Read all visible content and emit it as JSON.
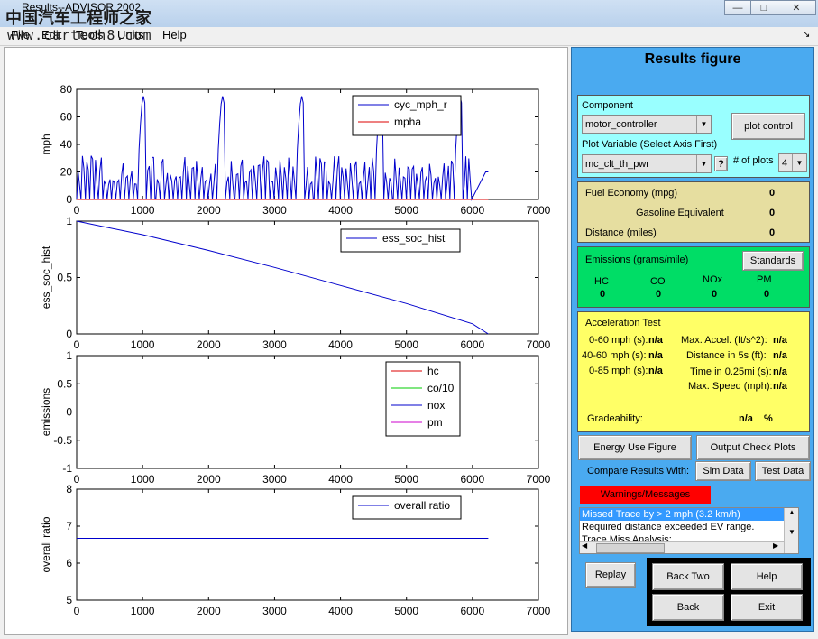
{
  "window": {
    "title": "Results--ADVISOR 2002",
    "watermark": "中国汽车工程师之家",
    "watermark_url": "www.cartech8.com",
    "minimize": "—",
    "maximize": "□",
    "close": "✕"
  },
  "menubar": {
    "items": [
      "File",
      "Edit",
      "Tools",
      "Units",
      "Help"
    ]
  },
  "plots": [
    {
      "ylabel": "mph",
      "yticks": [
        "80",
        "60",
        "40",
        "20",
        "0"
      ],
      "xticks": [
        "0",
        "1000",
        "2000",
        "3000",
        "4000",
        "5000",
        "6000",
        "7000"
      ],
      "legend": [
        {
          "name": "cyc_mph_r",
          "color": "#0000cc"
        },
        {
          "name": "mpha",
          "color": "#dd0000"
        }
      ]
    },
    {
      "ylabel": "ess_soc_hist",
      "yticks": [
        "1",
        "0.5",
        "0"
      ],
      "xticks": [
        "0",
        "1000",
        "2000",
        "3000",
        "4000",
        "5000",
        "6000",
        "7000"
      ],
      "legend": [
        {
          "name": "ess_soc_hist",
          "color": "#0000cc"
        }
      ]
    },
    {
      "ylabel": "emissions",
      "yticks": [
        "1",
        "0.5",
        "0",
        "-0.5",
        "-1"
      ],
      "xticks": [
        "0",
        "1000",
        "2000",
        "3000",
        "4000",
        "5000",
        "6000",
        "7000"
      ],
      "legend": [
        {
          "name": "hc",
          "color": "#dd0000"
        },
        {
          "name": "co/10",
          "color": "#00cc00"
        },
        {
          "name": "nox",
          "color": "#0000cc"
        },
        {
          "name": "pm",
          "color": "#cc00cc"
        }
      ]
    },
    {
      "ylabel": "overall ratio",
      "yticks": [
        "8",
        "7",
        "6",
        "5"
      ],
      "xticks": [
        "0",
        "1000",
        "2000",
        "3000",
        "4000",
        "5000",
        "6000",
        "7000"
      ],
      "legend": [
        {
          "name": "overall ratio",
          "color": "#0000cc"
        }
      ]
    }
  ],
  "chart_data": [
    {
      "type": "line",
      "ylabel": "mph",
      "xlim": [
        0,
        7000
      ],
      "ylim": [
        0,
        80
      ],
      "series": [
        {
          "name": "cyc_mph_r",
          "description": "repeating drive cycle, 5 cycles of ~1200 s, peaks ~75 mph",
          "x": [
            0,
            1200,
            2400,
            3600,
            4800,
            6240
          ],
          "peaks": [
            75,
            75,
            75,
            75,
            75
          ]
        },
        {
          "name": "mpha",
          "x": [
            0,
            6240
          ],
          "y": [
            0,
            0
          ]
        }
      ]
    },
    {
      "type": "line",
      "ylabel": "ess_soc_hist",
      "xlim": [
        0,
        7000
      ],
      "ylim": [
        0,
        1
      ],
      "series": [
        {
          "name": "ess_soc_hist",
          "x": [
            0,
            1000,
            2000,
            3000,
            4000,
            5000,
            6000,
            6240
          ],
          "y": [
            1.0,
            0.88,
            0.74,
            0.59,
            0.43,
            0.27,
            0.09,
            0.0
          ]
        }
      ]
    },
    {
      "type": "line",
      "ylabel": "emissions",
      "xlim": [
        0,
        7000
      ],
      "ylim": [
        -1,
        1
      ],
      "series": [
        {
          "name": "hc",
          "x": [
            0,
            6240
          ],
          "y": [
            0,
            0
          ]
        },
        {
          "name": "co/10",
          "x": [
            0,
            6240
          ],
          "y": [
            0,
            0
          ]
        },
        {
          "name": "nox",
          "x": [
            0,
            6240
          ],
          "y": [
            0,
            0
          ]
        },
        {
          "name": "pm",
          "x": [
            0,
            6240
          ],
          "y": [
            0,
            0
          ]
        }
      ]
    },
    {
      "type": "line",
      "ylabel": "overall ratio",
      "xlim": [
        0,
        7000
      ],
      "ylim": [
        5,
        8
      ],
      "series": [
        {
          "name": "overall ratio",
          "x": [
            0,
            6240
          ],
          "y": [
            6.67,
            6.67
          ]
        }
      ]
    }
  ],
  "panel": {
    "title": "Results figure",
    "component_label": "Component",
    "component_value": "motor_controller",
    "plot_control": "plot control",
    "plot_variable_label": "Plot Variable (Select Axis First)",
    "plot_variable_value": "mc_clt_th_pwr",
    "help_q": "?",
    "num_plots_label": "# of plots",
    "num_plots_value": "4",
    "fuel": {
      "fe_label": "Fuel Economy (mpg)",
      "fe_value": "0",
      "ge_label": "Gasoline Equivalent",
      "ge_value": "0",
      "dist_label": "Distance (miles)",
      "dist_value": "0"
    },
    "emissions": {
      "label": "Emissions (grams/mile)",
      "standards": "Standards",
      "cols": [
        {
          "name": "HC",
          "value": "0"
        },
        {
          "name": "CO",
          "value": "0"
        },
        {
          "name": "NOx",
          "value": "0"
        },
        {
          "name": "PM",
          "value": "0"
        }
      ]
    },
    "accel": {
      "title": "Acceleration Test",
      "r060": "0-60 mph (s):",
      "r060v": "n/a",
      "r4060": "40-60 mph (s):",
      "r4060v": "n/a",
      "r085": "0-85 mph (s):",
      "r085v": "n/a",
      "maxacc": "Max. Accel. (ft/s^2):",
      "maxaccv": "n/a",
      "d5s": "Distance in 5s (ft):",
      "d5sv": "n/a",
      "t025": "Time in 0.25mi (s):",
      "t025v": "n/a",
      "maxspd": "Max. Speed (mph):",
      "maxspdv": "n/a",
      "grade": "Gradeability:",
      "gradev": "n/a",
      "gradeu": "%"
    },
    "energy_use": "Energy Use Figure",
    "output_check": "Output Check Plots",
    "compare_label": "Compare Results With:",
    "sim_data": "Sim Data",
    "test_data": "Test Data",
    "warnings_label": "Warnings/Messages",
    "messages": [
      "Missed Trace by > 2 mph (3.2 km/h)",
      "Required distance exceeded EV range.",
      "Trace Miss Analysis:"
    ],
    "replay": "Replay",
    "back_two": "Back Two",
    "help": "Help",
    "back": "Back",
    "exit": "Exit"
  },
  "colors": {
    "panel_bg": "#4aaaf0",
    "fuel_bg": "#e6dea0",
    "emis_bg": "#00dd66",
    "accel_bg": "#ffff66",
    "input_bg": "#99ffff",
    "warn_bg": "#ff0000"
  }
}
